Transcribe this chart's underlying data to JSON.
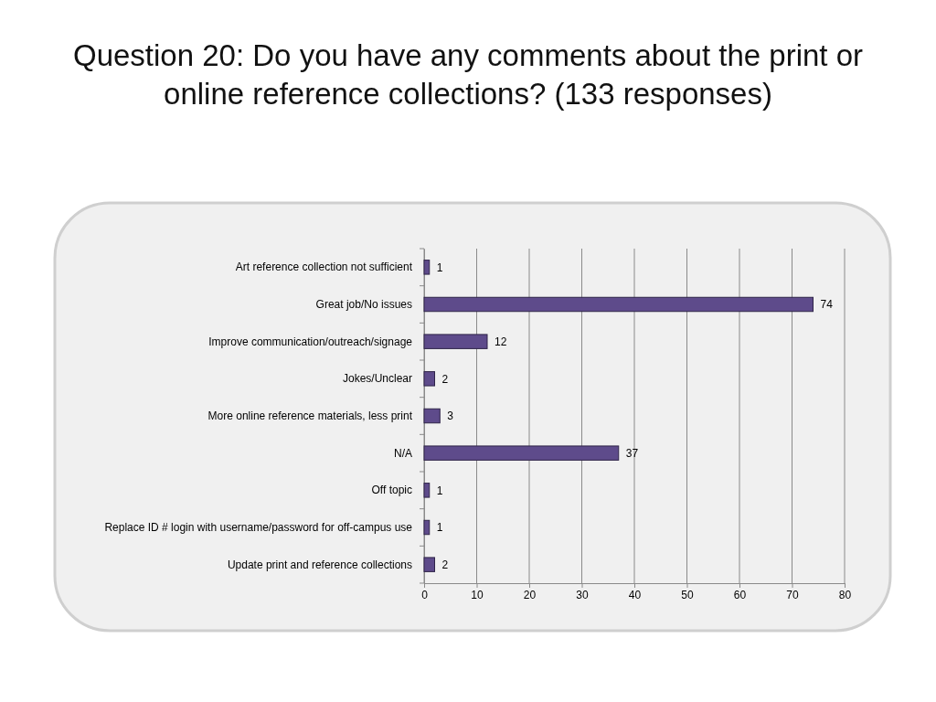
{
  "chart_data": {
    "type": "bar",
    "orientation": "horizontal",
    "title": "Question 20: Do you have any comments about the print or online reference collections? (133 responses)",
    "categories": [
      "Art reference collection not sufficient",
      "Great job/No issues",
      "Improve communication/outreach/signage",
      "Jokes/Unclear",
      "More online reference materials, less print",
      "N/A",
      "Off topic",
      "Replace ID # login with username/password for off-campus use",
      "Update print and reference collections"
    ],
    "values": [
      1,
      74,
      12,
      2,
      3,
      37,
      1,
      1,
      2
    ],
    "color": "#5e4b8b",
    "xlim": [
      0,
      80
    ],
    "xticks": [
      0,
      10,
      20,
      30,
      40,
      50,
      60,
      70,
      80
    ],
    "grid": "x",
    "data_labels": true
  }
}
